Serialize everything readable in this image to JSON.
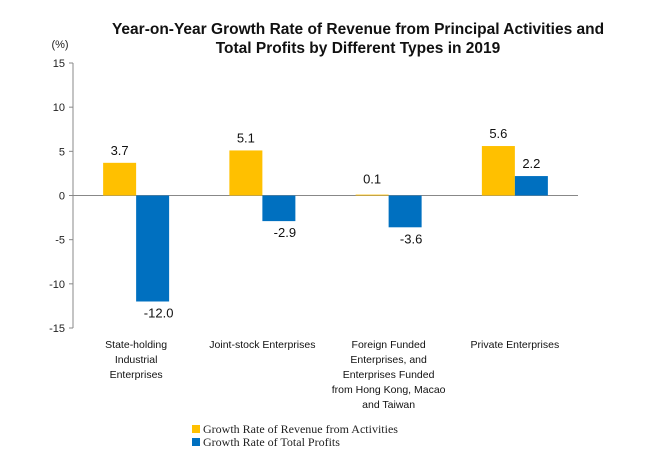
{
  "chart_data": {
    "type": "bar",
    "title": [
      "Year-on-Year Growth Rate of Revenue from Principal Activities and",
      "Total Profits by Different Types in 2019"
    ],
    "unit_label": "(%)",
    "ylim": [
      -15,
      15
    ],
    "yticks": [
      15,
      10,
      5,
      0,
      -5,
      -10,
      -15
    ],
    "categories": [
      [
        "State-holding",
        "Industrial",
        "Enterprises"
      ],
      [
        "Joint-stock Enterprises"
      ],
      [
        "Foreign Funded",
        "Enterprises, and",
        "Enterprises Funded",
        "from Hong Kong, Macao",
        "and Taiwan"
      ],
      [
        "Private Enterprises"
      ]
    ],
    "series": [
      {
        "name": "Growth Rate of Revenue from Activities",
        "color": "#FFC000",
        "values": [
          3.7,
          5.1,
          0.1,
          5.6
        ],
        "labels": [
          "3.7",
          "5.1",
          "0.1",
          "5.6"
        ]
      },
      {
        "name": "Growth Rate of Total Profits",
        "color": "#0070C0",
        "values": [
          -12.0,
          -2.9,
          -3.6,
          2.2
        ],
        "labels": [
          "-12.0",
          "-2.9",
          "-3.6",
          "2.2"
        ]
      }
    ],
    "legend_position": "bottom-center"
  }
}
